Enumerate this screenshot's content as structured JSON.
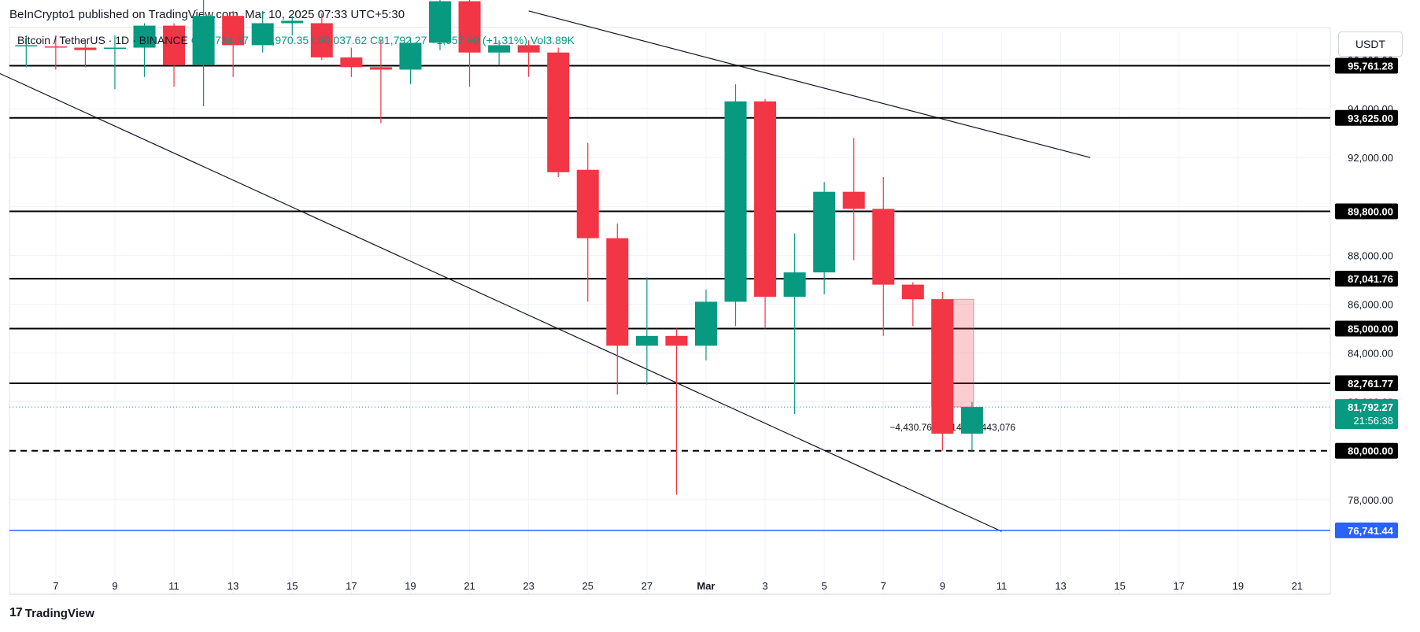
{
  "header": {
    "publisher": "BeInCrypto1 published on TradingView.com, Mar 10, 2025 07:33 UTC+5:30",
    "symbol": "Bitcoin / TetherUS · 1D · BINANCE",
    "ohlc_text": "O80,734.37 H81,970.35 L80,037.62 C81,792.27 +1,057.90 (+1.31%) Vol3.89K",
    "currency_button": "USDT"
  },
  "footer": {
    "brand": "TradingView"
  },
  "colors": {
    "up": "#089981",
    "down": "#f23645",
    "level_line": "#000000",
    "blue_line": "#2962ff",
    "grid": "#f0f3fa"
  },
  "chart_data": {
    "type": "candlestick",
    "ylim": [
      75900,
      97000
    ],
    "y_ticks": [
      78000,
      80000,
      82000,
      84000,
      86000,
      88000,
      90000,
      92000,
      94000,
      96000
    ],
    "x_tick_labels": [
      "7",
      "9",
      "11",
      "13",
      "15",
      "17",
      "19",
      "21",
      "23",
      "25",
      "27",
      "Mar",
      "3",
      "5",
      "7",
      "9",
      "11",
      "13",
      "15",
      "17",
      "19",
      "21"
    ],
    "candles": [
      {
        "date": "2025-02-06",
        "open": 96600,
        "high": 97000,
        "low": 95700,
        "close": 96600
      },
      {
        "date": "2025-02-07",
        "open": 96550,
        "high": 97000,
        "low": 95600,
        "close": 96500
      },
      {
        "date": "2025-02-08",
        "open": 96500,
        "high": 96800,
        "low": 95700,
        "close": 96400
      },
      {
        "date": "2025-02-09",
        "open": 96450,
        "high": 97000,
        "low": 94800,
        "close": 96500
      },
      {
        "date": "2025-02-10",
        "open": 96500,
        "high": 97500,
        "low": 95300,
        "close": 97400
      },
      {
        "date": "2025-02-11",
        "open": 97400,
        "high": 97500,
        "low": 94900,
        "close": 95800
      },
      {
        "date": "2025-02-12",
        "open": 95800,
        "high": 98500,
        "low": 94100,
        "close": 97800
      },
      {
        "date": "2025-02-13",
        "open": 97800,
        "high": 98000,
        "low": 95300,
        "close": 96600
      },
      {
        "date": "2025-02-14",
        "open": 96600,
        "high": 98000,
        "low": 96300,
        "close": 97500
      },
      {
        "date": "2025-02-15",
        "open": 97500,
        "high": 97800,
        "low": 97000,
        "close": 97600
      },
      {
        "date": "2025-02-16",
        "open": 97500,
        "high": 97900,
        "low": 96000,
        "close": 96100
      },
      {
        "date": "2025-02-17",
        "open": 96100,
        "high": 96500,
        "low": 95300,
        "close": 95700
      },
      {
        "date": "2025-02-18",
        "open": 95700,
        "high": 96800,
        "low": 93400,
        "close": 95600
      },
      {
        "date": "2025-02-19",
        "open": 95600,
        "high": 96900,
        "low": 95000,
        "close": 96700
      },
      {
        "date": "2025-02-20",
        "open": 96700,
        "high": 98600,
        "low": 96400,
        "close": 98400
      },
      {
        "date": "2025-02-21",
        "open": 98400,
        "high": 99500,
        "low": 94900,
        "close": 96300
      },
      {
        "date": "2025-02-22",
        "open": 96300,
        "high": 96800,
        "low": 95800,
        "close": 96600
      },
      {
        "date": "2025-02-23",
        "open": 96600,
        "high": 96800,
        "low": 95300,
        "close": 96300
      },
      {
        "date": "2025-02-24",
        "open": 96300,
        "high": 96500,
        "low": 91200,
        "close": 91400
      },
      {
        "date": "2025-02-25",
        "open": 91500,
        "high": 92600,
        "low": 86100,
        "close": 88700
      },
      {
        "date": "2025-02-26",
        "open": 88700,
        "high": 89300,
        "low": 82300,
        "close": 84300
      },
      {
        "date": "2025-02-27",
        "open": 84300,
        "high": 87100,
        "low": 82700,
        "close": 84700
      },
      {
        "date": "2025-02-28",
        "open": 84700,
        "high": 85000,
        "low": 78200,
        "close": 84300
      },
      {
        "date": "2025-03-01",
        "open": 84300,
        "high": 86600,
        "low": 83700,
        "close": 86100
      },
      {
        "date": "2025-03-02",
        "open": 86100,
        "high": 95000,
        "low": 85100,
        "close": 94300
      },
      {
        "date": "2025-03-03",
        "open": 94300,
        "high": 94400,
        "low": 85000,
        "close": 86300
      },
      {
        "date": "2025-03-04",
        "open": 86300,
        "high": 88900,
        "low": 81500,
        "close": 87300
      },
      {
        "date": "2025-03-05",
        "open": 87300,
        "high": 91000,
        "low": 86400,
        "close": 90600
      },
      {
        "date": "2025-03-06",
        "open": 90600,
        "high": 92800,
        "low": 87800,
        "close": 89900
      },
      {
        "date": "2025-03-07",
        "open": 89900,
        "high": 91200,
        "low": 84700,
        "close": 86800
      },
      {
        "date": "2025-03-08",
        "open": 86800,
        "high": 86900,
        "low": 85100,
        "close": 86200
      },
      {
        "date": "2025-03-09",
        "open": 86200,
        "high": 86500,
        "low": 80000,
        "close": 80700
      },
      {
        "date": "2025-03-10",
        "open": 80700,
        "high": 82000,
        "low": 80000,
        "close": 81792.27
      }
    ],
    "horizontal_levels": [
      {
        "value": 95761.28,
        "label": "95,761.28",
        "style": "solid"
      },
      {
        "value": 93625.0,
        "label": "93,625.00",
        "style": "solid"
      },
      {
        "value": 89800.0,
        "label": "89,800.00",
        "style": "solid"
      },
      {
        "value": 87041.76,
        "label": "87,041.76",
        "style": "solid"
      },
      {
        "value": 85000.0,
        "label": "85,000.00",
        "style": "solid"
      },
      {
        "value": 82761.77,
        "label": "82,761.77",
        "style": "solid"
      },
      {
        "value": 80000.0,
        "label": "80,000.00",
        "style": "dashed"
      },
      {
        "value": 76741.44,
        "label": "76,741.44",
        "style": "blue"
      }
    ],
    "trendlines": [
      {
        "from": {
          "date": "2025-02-05",
          "value": 95500
        },
        "to": {
          "date": "2025-03-11",
          "value": 76700
        }
      },
      {
        "from": {
          "date": "2025-02-23",
          "value": 98000
        },
        "to": {
          "date": "2025-03-14",
          "value": 92000
        }
      }
    ],
    "current_price": {
      "label": "81,792.27",
      "countdown": "21:56:38"
    },
    "measure": {
      "from_date": "2025-03-09",
      "to_date": "2025-03-10",
      "top": 86200,
      "bottom": 81792.27,
      "label": "−4,430.76 (−5.14%) −443,076"
    }
  }
}
